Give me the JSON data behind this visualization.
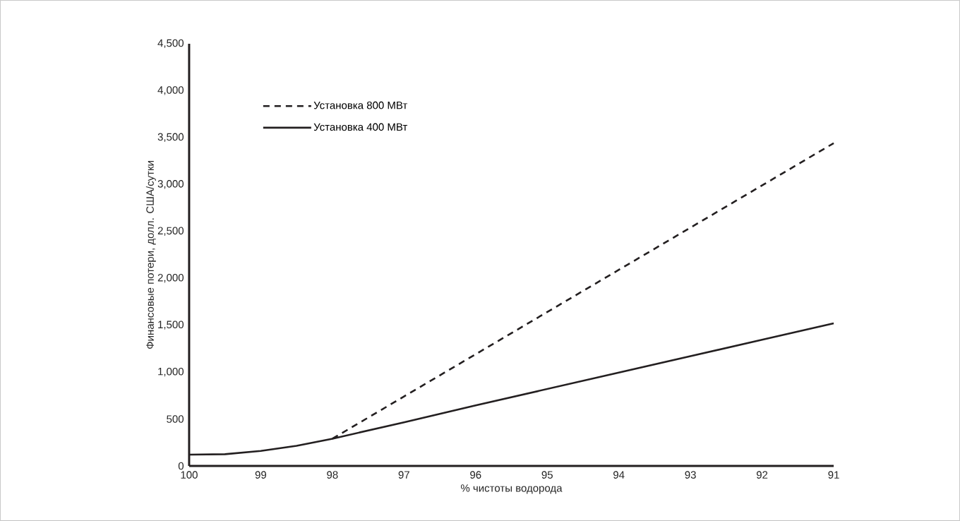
{
  "chart_data": {
    "type": "line",
    "xlabel": "% чистоты водорода",
    "ylabel": "Финансовые потери, долл. США/сутки",
    "xlim": [
      100,
      91
    ],
    "xticks": [
      100,
      99,
      98,
      97,
      96,
      95,
      94,
      93,
      92,
      91
    ],
    "ylim": [
      0,
      4500
    ],
    "yticks": [
      0,
      500,
      {
        "value": 1000,
        "label": "1,000"
      },
      {
        "value": 1500,
        "label": "1,500"
      },
      {
        "value": 2000,
        "label": "2,000"
      },
      {
        "value": 2500,
        "label": "2,500"
      },
      {
        "value": 3000,
        "label": "3,000"
      },
      {
        "value": 3500,
        "label": "3,500"
      },
      {
        "value": 4000,
        "label": "4,000"
      },
      {
        "value": 4500,
        "label": "4,500"
      }
    ],
    "grid": false,
    "legend": "top left",
    "marker": "none",
    "series": [
      {
        "name": "Установка 800 МВт",
        "color": "#231f20",
        "line_style": "dashed",
        "x": [
          98,
          97,
          96,
          95,
          94,
          93,
          92,
          91
        ],
        "values": [
          290,
          740,
          1190,
          1640,
          2090,
          2540,
          2990,
          3440
        ]
      },
      {
        "name": "Установка 400 МВт",
        "color": "#231f20",
        "line_style": "solid",
        "x": [
          100,
          99.5,
          99,
          98.5,
          98,
          97,
          96,
          95,
          94,
          93,
          92,
          91
        ],
        "values": [
          120,
          125,
          160,
          215,
          290,
          465,
          645,
          820,
          995,
          1170,
          1345,
          1520
        ]
      }
    ]
  }
}
